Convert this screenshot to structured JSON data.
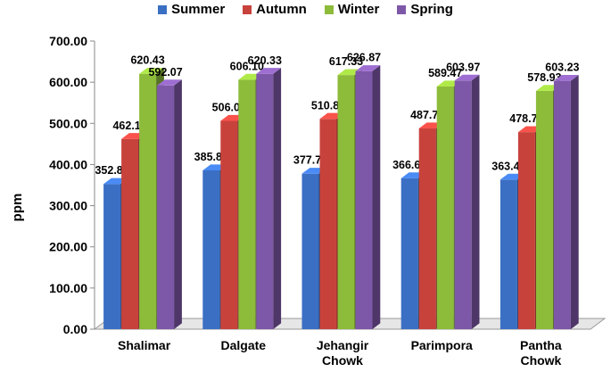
{
  "chart_data": {
    "type": "bar",
    "ylabel": "ppm",
    "ylim": [
      0,
      700
    ],
    "yticks": [
      "0.00",
      "100.00",
      "200.00",
      "300.00",
      "400.00",
      "500.00",
      "600.00",
      "700.00"
    ],
    "categories": [
      "Shalimar",
      "Dalgate",
      "Jehangir Chowk",
      "Parimpora",
      "Pantha Chowk"
    ],
    "category_lines": [
      [
        "Shalimar"
      ],
      [
        "Dalgate"
      ],
      [
        "Jehangir",
        "Chowk"
      ],
      [
        "Parimpora"
      ],
      [
        "Pantha",
        "Chowk"
      ]
    ],
    "series": [
      {
        "name": "Summer",
        "color": "#3b6fc4",
        "values": [
          352.8,
          385.8,
          377.77,
          366.6,
          363.43
        ],
        "labels": [
          "352.80",
          "385.80",
          "377.77",
          "366.60",
          "363.43"
        ]
      },
      {
        "name": "Autumn",
        "color": "#c8423c",
        "values": [
          462.13,
          506.0,
          510.87,
          487.7,
          478.7
        ],
        "labels": [
          "462.13",
          "506.00",
          "510.87",
          "487.70",
          "478.70"
        ]
      },
      {
        "name": "Winter",
        "color": "#8dbb3a",
        "values": [
          620.43,
          606.1,
          617.33,
          589.47,
          578.93
        ],
        "labels": [
          "620.43",
          "606.10",
          "617.33",
          "589.47",
          "578.93"
        ]
      },
      {
        "name": "Spring",
        "color": "#7e58a8",
        "values": [
          592.07,
          620.33,
          626.87,
          603.97,
          603.23
        ],
        "labels": [
          "592.07",
          "620.33",
          "626.87",
          "603.97",
          "603.23"
        ]
      }
    ],
    "legend_position": "top",
    "grid": false
  }
}
